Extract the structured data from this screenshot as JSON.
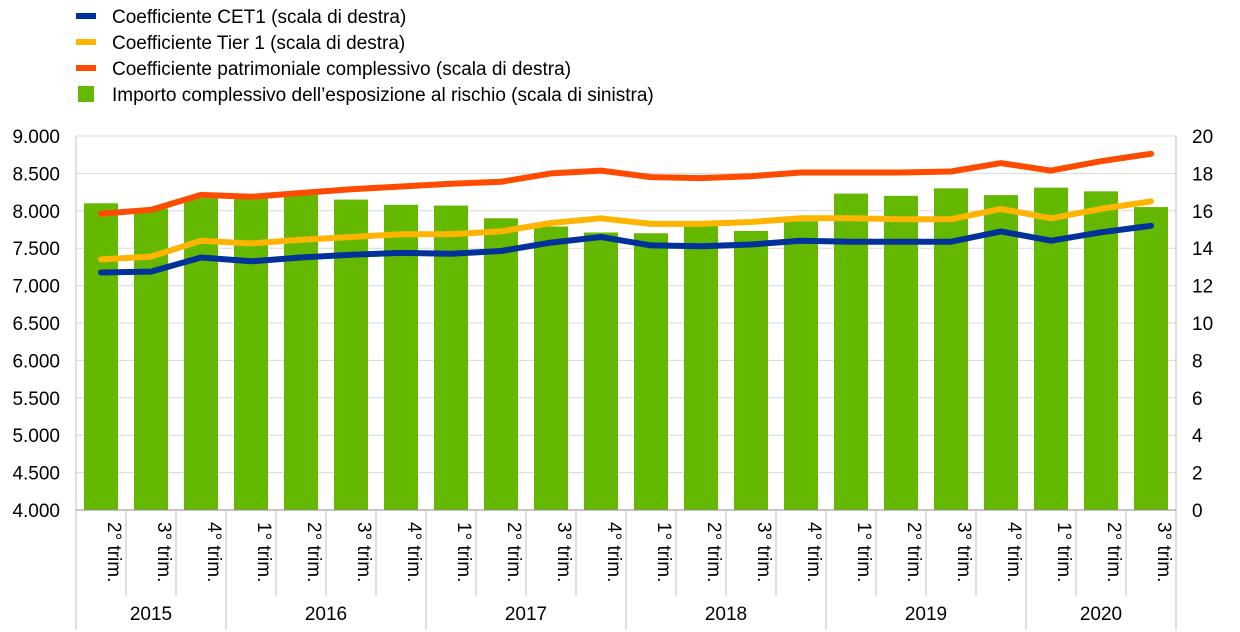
{
  "chart_data": {
    "type": "bar+line",
    "legend_position": "top-left",
    "legend": [
      {
        "label": "Coefficiente CET1 (scala di destra)",
        "color": "#003299",
        "kind": "line"
      },
      {
        "label": "Coefficiente Tier 1 (scala di destra)",
        "color": "#FFB400",
        "kind": "line"
      },
      {
        "label": "Coefficiente patrimoniale complessivo (scala di destra)",
        "color": "#FF4B00",
        "kind": "line"
      },
      {
        "label": "Importo complessivo dell’esposizione al rischio (scala di sinistra)",
        "color": "#65B800",
        "kind": "bar"
      }
    ],
    "left_axis": {
      "min": 4000,
      "max": 9000,
      "ticks": [
        "4.000",
        "4.500",
        "5.000",
        "5.500",
        "6.000",
        "6.500",
        "7.000",
        "7.500",
        "8.000",
        "8.500",
        "9.000"
      ]
    },
    "right_axis": {
      "min": 0,
      "max": 20,
      "ticks": [
        "0",
        "2",
        "4",
        "6",
        "8",
        "10",
        "12",
        "14",
        "16",
        "18",
        "20"
      ]
    },
    "categories": [
      "2° trim.",
      "3° trim.",
      "4° trim.",
      "1° trim.",
      "2° trim.",
      "3° trim.",
      "4° trim.",
      "1° trim.",
      "2° trim.",
      "3° trim.",
      "4° trim.",
      "1° trim.",
      "2° trim.",
      "3° trim.",
      "4° trim.",
      "1° trim.",
      "2° trim.",
      "3° trim.",
      "4° trim.",
      "1° trim.",
      "2° trim.",
      "3° trim."
    ],
    "years": [
      {
        "label": "2015",
        "count": 3
      },
      {
        "label": "2016",
        "count": 4
      },
      {
        "label": "2017",
        "count": 4
      },
      {
        "label": "2018",
        "count": 4
      },
      {
        "label": "2019",
        "count": 4
      },
      {
        "label": "2020",
        "count": 3
      }
    ],
    "bars": {
      "name": "Importo complessivo dell’esposizione al rischio (scala di sinistra)",
      "axis": "left",
      "values": [
        8100,
        8030,
        8170,
        8220,
        8220,
        8150,
        8080,
        8070,
        7900,
        7790,
        7710,
        7700,
        7800,
        7730,
        7860,
        8230,
        8200,
        8300,
        8210,
        8310,
        8260,
        8050
      ]
    },
    "series": [
      {
        "name": "Coefficiente CET1 (scala di destra)",
        "axis": "right",
        "color": "#003299",
        "values": [
          12.7,
          12.75,
          13.5,
          13.3,
          13.5,
          13.65,
          13.75,
          13.7,
          13.85,
          14.3,
          14.6,
          14.15,
          14.1,
          14.2,
          14.4,
          14.35,
          14.35,
          14.35,
          14.9,
          14.4,
          14.85,
          15.2
        ]
      },
      {
        "name": "Coefficiente Tier 1 (scala di destra)",
        "axis": "right",
        "color": "#FFB400",
        "values": [
          13.4,
          13.55,
          14.4,
          14.25,
          14.45,
          14.6,
          14.75,
          14.75,
          14.9,
          15.35,
          15.6,
          15.3,
          15.3,
          15.4,
          15.6,
          15.6,
          15.55,
          15.55,
          16.1,
          15.6,
          16.1,
          16.5
        ]
      },
      {
        "name": "Coefficiente patrimoniale complessivo (scala di destra)",
        "axis": "right",
        "color": "#FF4B00",
        "values": [
          15.85,
          16.05,
          16.85,
          16.75,
          16.95,
          17.15,
          17.3,
          17.45,
          17.55,
          18.0,
          18.15,
          17.8,
          17.75,
          17.85,
          18.05,
          18.05,
          18.05,
          18.1,
          18.55,
          18.15,
          18.65,
          19.05
        ]
      }
    ]
  }
}
